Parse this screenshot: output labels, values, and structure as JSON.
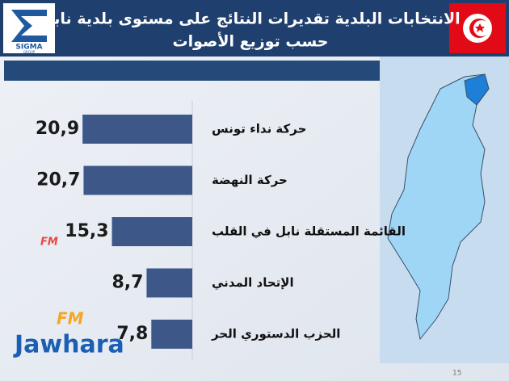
{
  "chart_data": {
    "type": "hbar",
    "title": [
      "الانتخابات البلدية تقديرات النتائج على مستوى بلدية نابل",
      "حسب توزيع الأصوات"
    ],
    "categories": [
      "حركة نداء تونس",
      "حركة النهضة",
      "القائمة المستقلة نابل في القلب",
      "الإتحاد المدني",
      "الحزب الدستوري الحر"
    ],
    "values": [
      20.9,
      20.7,
      15.3,
      8.7,
      7.8
    ],
    "value_labels": [
      "20,9",
      "20,7",
      "15,3",
      "8,7",
      "7,8"
    ],
    "color": "#3d5788"
  },
  "branding": {
    "sigma": "SIGMA",
    "group": "GROUP",
    "fm": "FM",
    "jawhara": "Jawhara"
  },
  "page_number": 15
}
